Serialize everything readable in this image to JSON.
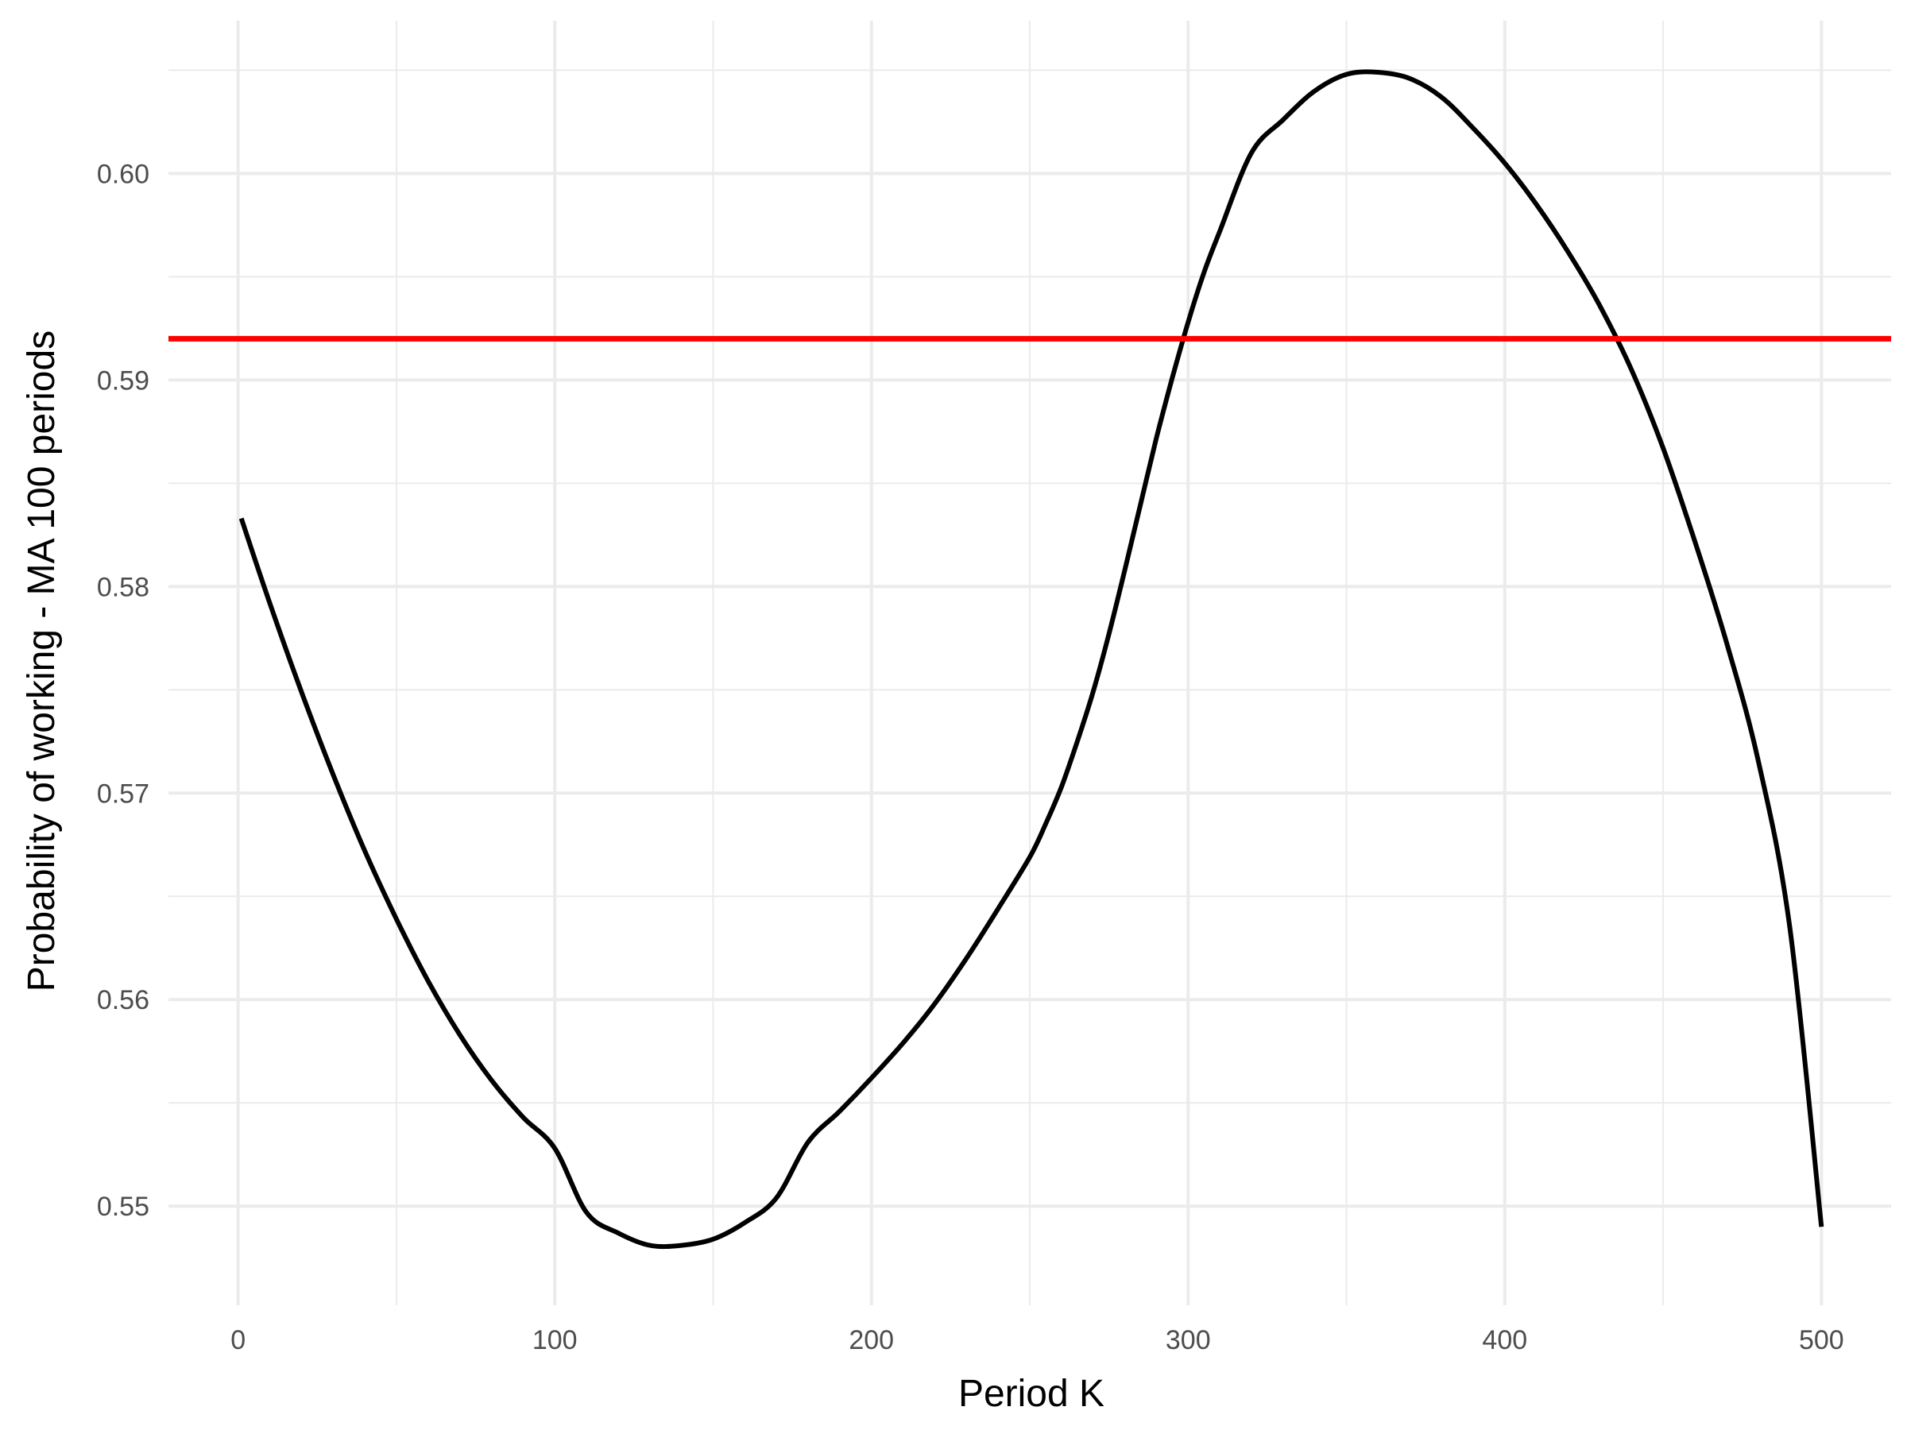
{
  "chart_data": {
    "type": "line",
    "title": "",
    "xlabel": "Period K",
    "ylabel": "Probability of working - MA 100 periods",
    "xlim": [
      -22,
      522
    ],
    "ylim": [
      0.5452,
      0.6074
    ],
    "x_ticks": [
      0,
      100,
      200,
      300,
      400,
      500
    ],
    "y_ticks": [
      0.55,
      0.56,
      0.57,
      0.58,
      0.59,
      0.6
    ],
    "x_tick_labels": [
      "0",
      "100",
      "200",
      "300",
      "400",
      "500"
    ],
    "y_tick_labels": [
      "0.55",
      "0.56",
      "0.57",
      "0.58",
      "0.59",
      "0.60"
    ],
    "grid": true,
    "background": "#ffffff",
    "grid_color": "#ebebeb",
    "series": [
      {
        "color": "#000000",
        "x": [
          1,
          10,
          20,
          30,
          40,
          50,
          60,
          70,
          80,
          90,
          100,
          110,
          120,
          130,
          140,
          150,
          160,
          170,
          180,
          190,
          200,
          210,
          220,
          230,
          240,
          250,
          255,
          260,
          265,
          270,
          275,
          280,
          285,
          290,
          295,
          300,
          305,
          310,
          320,
          330,
          340,
          350,
          360,
          370,
          380,
          390,
          400,
          410,
          420,
          430,
          440,
          450,
          460,
          470,
          480,
          490,
          500
        ],
        "y": [
          0.5833,
          0.5792,
          0.5749,
          0.5709,
          0.5672,
          0.5639,
          0.5609,
          0.5583,
          0.5561,
          0.5543,
          0.5528,
          0.5497,
          0.5487,
          0.5481,
          0.5481,
          0.5484,
          0.5492,
          0.5504,
          0.5531,
          0.5546,
          0.5562,
          0.5579,
          0.5598,
          0.562,
          0.5644,
          0.5669,
          0.5685,
          0.5703,
          0.5725,
          0.5749,
          0.5777,
          0.5808,
          0.584,
          0.5872,
          0.5901,
          0.5928,
          0.5952,
          0.5972,
          0.601,
          0.6026,
          0.604,
          0.6048,
          0.6049,
          0.6046,
          0.6037,
          0.6022,
          0.6005,
          0.5985,
          0.5962,
          0.5936,
          0.5905,
          0.5867,
          0.5822,
          0.5773,
          0.5716,
          0.5635,
          0.549
        ]
      },
      {
        "color": "#ff0000",
        "type": "hline",
        "y_value": 0.592
      }
    ]
  }
}
